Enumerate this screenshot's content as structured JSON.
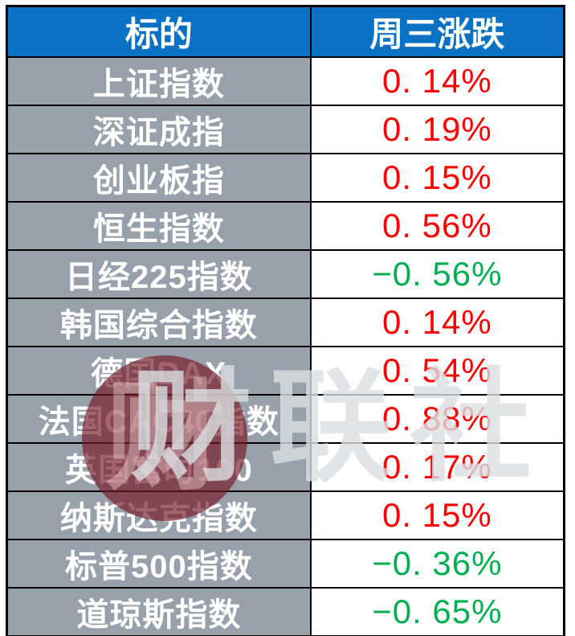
{
  "chart_data": {
    "type": "table",
    "title": "",
    "columns": [
      "标的",
      "周三涨跌"
    ],
    "rows": [
      [
        "上证指数",
        "0. 14%"
      ],
      [
        "深证成指",
        "0. 19%"
      ],
      [
        "创业板指",
        "0. 15%"
      ],
      [
        "恒生指数",
        "0. 56%"
      ],
      [
        "日经225指数",
        "−0. 56%"
      ],
      [
        "韩国综合指数",
        "0. 14%"
      ],
      [
        "德国DAX",
        "0. 54%"
      ],
      [
        "法国CAC40指数",
        "0. 88%"
      ],
      [
        "英国富时100",
        "0. 17%"
      ],
      [
        "纳斯达克指数",
        "0. 15%"
      ],
      [
        "标普500指数",
        "−0. 36%"
      ],
      [
        "道琼斯指数",
        "−0. 65%"
      ]
    ],
    "values_numeric": [
      0.14,
      0.19,
      0.15,
      0.56,
      -0.56,
      0.14,
      0.54,
      0.88,
      0.17,
      0.15,
      -0.36,
      -0.65
    ],
    "legend_note": "red = up, green = down (Chinese market convention)"
  },
  "table": {
    "header": {
      "col1": "标的",
      "col2": "周三涨跌"
    },
    "rows": [
      {
        "name": "上证指数",
        "change": "0. 14%",
        "direction": "up"
      },
      {
        "name": "深证成指",
        "change": "0. 19%",
        "direction": "up"
      },
      {
        "name": "创业板指",
        "change": "0. 15%",
        "direction": "up"
      },
      {
        "name": "恒生指数",
        "change": "0. 56%",
        "direction": "up"
      },
      {
        "name": "日经225指数",
        "change": "−0. 56%",
        "direction": "down"
      },
      {
        "name": "韩国综合指数",
        "change": "0. 14%",
        "direction": "up"
      },
      {
        "name": "德国DAX",
        "change": "0. 54%",
        "direction": "up"
      },
      {
        "name": "法国CAC40指数",
        "change": "0. 88%",
        "direction": "up"
      },
      {
        "name": "英国富时100",
        "change": "0. 17%",
        "direction": "up"
      },
      {
        "name": "纳斯达克指数",
        "change": "0. 15%",
        "direction": "up"
      },
      {
        "name": "标普500指数",
        "change": "−0. 36%",
        "direction": "down"
      },
      {
        "name": "道琼斯指数",
        "change": "−0. 65%",
        "direction": "down"
      }
    ]
  },
  "watermark": {
    "logo_char": "财",
    "text": "财联社"
  },
  "colors": {
    "header_bg": "#0A71C5",
    "label_bg": "#98A1AB",
    "up": "#FF0000",
    "down": "#00B050",
    "border": "#000000"
  }
}
